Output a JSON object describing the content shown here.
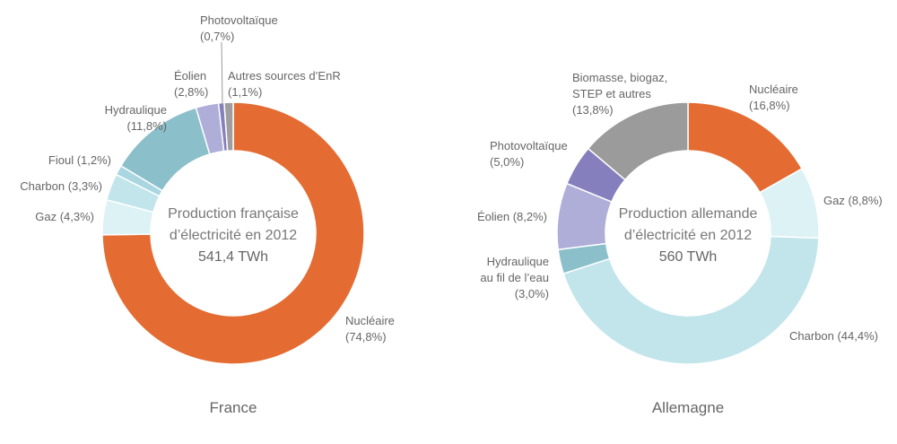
{
  "colors": {
    "nucleaire": "#e46c32",
    "gaz": "#dcf2f4",
    "charbon": "#c2e5eb",
    "fioul": "#a9d6e0",
    "hydraulique": "#8bbfca",
    "eolien": "#aeaed9",
    "photovoltaique": "#8580bd",
    "autres_enr": "#9e9e9e",
    "biomasse": "#9b9b9b",
    "text": "#666666",
    "leader": "#999999"
  },
  "chart_data": [
    {
      "type": "pie",
      "variant": "donut",
      "country": "France",
      "center": {
        "line1": "Production française",
        "line2": "d’électricité en 2012",
        "total": "541,4 TWh"
      },
      "slices": [
        {
          "key": "nucleaire",
          "label_lines": [
            "Nucléaire",
            "(74,8%)"
          ],
          "value": 74.8
        },
        {
          "key": "gaz",
          "label_lines": [
            "Gaz (4,3%)"
          ],
          "value": 4.3
        },
        {
          "key": "charbon",
          "label_lines": [
            "Charbon (3,3%)"
          ],
          "value": 3.3
        },
        {
          "key": "fioul",
          "label_lines": [
            "Fioul (1,2%)"
          ],
          "value": 1.2
        },
        {
          "key": "hydraulique",
          "label_lines": [
            "Hydraulique",
            "(11,8%)"
          ],
          "value": 11.8
        },
        {
          "key": "eolien",
          "label_lines": [
            "Éolien",
            "(2,8%)"
          ],
          "value": 2.8
        },
        {
          "key": "photovoltaique",
          "label_lines": [
            "Photovoltaïque",
            "(0,7%)"
          ],
          "value": 0.7
        },
        {
          "key": "autres_enr",
          "label_lines": [
            "Autres sources d’EnR",
            "(1,1%)"
          ],
          "value": 1.1
        }
      ]
    },
    {
      "type": "pie",
      "variant": "donut",
      "country": "Allemagne",
      "center": {
        "line1": "Production allemande",
        "line2": "d’électricité en 2012",
        "total": "560 TWh"
      },
      "slices": [
        {
          "key": "nucleaire",
          "label_lines": [
            "Nucléaire",
            "(16,8%)"
          ],
          "value": 16.8
        },
        {
          "key": "gaz",
          "label_lines": [
            "Gaz (8,8%)"
          ],
          "value": 8.8
        },
        {
          "key": "charbon",
          "label_lines": [
            "Charbon (44,4%)"
          ],
          "value": 44.4
        },
        {
          "key": "hydraulique",
          "label_lines": [
            "Hydraulique",
            "au fil de l’eau",
            "(3,0%)"
          ],
          "value": 3.0
        },
        {
          "key": "eolien",
          "label_lines": [
            "Éolien (8,2%)"
          ],
          "value": 8.2
        },
        {
          "key": "photovoltaique",
          "label_lines": [
            "Photovoltaïque",
            "(5,0%)"
          ],
          "value": 5.0
        },
        {
          "key": "biomasse",
          "label_lines": [
            "Biomasse, biogaz,",
            "STEP et autres",
            "(13,8%)"
          ],
          "value": 13.8
        }
      ]
    }
  ]
}
